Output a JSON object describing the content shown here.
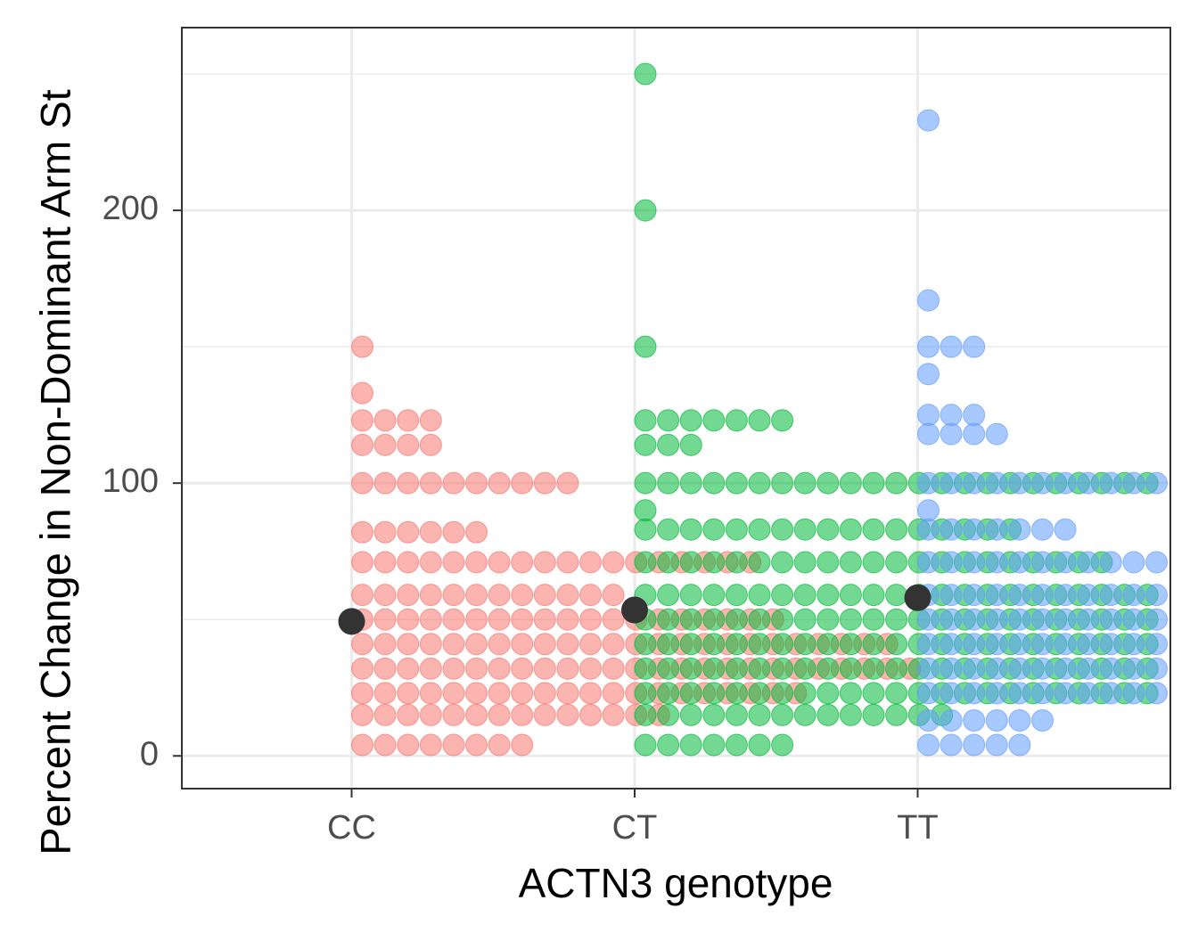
{
  "chart_data": {
    "type": "dotplot",
    "x_label": "ACTN3 genotype",
    "y_label": "Percent Change in Non-Dominant Arm St",
    "categories": [
      "CC",
      "CT",
      "TT"
    ],
    "groups": [
      {
        "color": "#F8766D",
        "values": [
          150,
          133,
          123,
          114,
          100,
          82,
          71,
          59,
          50,
          41,
          32,
          23,
          15,
          4
        ],
        "counts": [
          1,
          1,
          4,
          4,
          10,
          6,
          18,
          12,
          19,
          24,
          25,
          20,
          14,
          8
        ]
      },
      {
        "color": "#00BA38",
        "values": [
          250,
          200,
          150,
          123,
          114,
          100,
          90,
          83,
          71,
          59,
          50,
          41,
          32,
          23,
          15,
          4
        ],
        "counts": [
          1,
          1,
          1,
          7,
          3,
          23,
          1,
          17,
          21,
          23,
          23,
          23,
          23,
          23,
          14,
          7
        ]
      },
      {
        "color": "#619CFF",
        "values": [
          233,
          167,
          150,
          140,
          125,
          118,
          100,
          90,
          83,
          71,
          59,
          50,
          41,
          32,
          23,
          13,
          4
        ],
        "counts": [
          1,
          1,
          3,
          1,
          3,
          4,
          11,
          1,
          7,
          11,
          11,
          11,
          11,
          11,
          11,
          6,
          5
        ]
      }
    ],
    "summary": {
      "color": "#333333",
      "values": [
        49.3,
        53.5,
        58
      ]
    },
    "ylim": [
      -12,
      267
    ],
    "yticks": [
      0,
      100,
      200
    ],
    "minor_yticks": [
      50,
      150,
      250
    ],
    "grid": true
  }
}
